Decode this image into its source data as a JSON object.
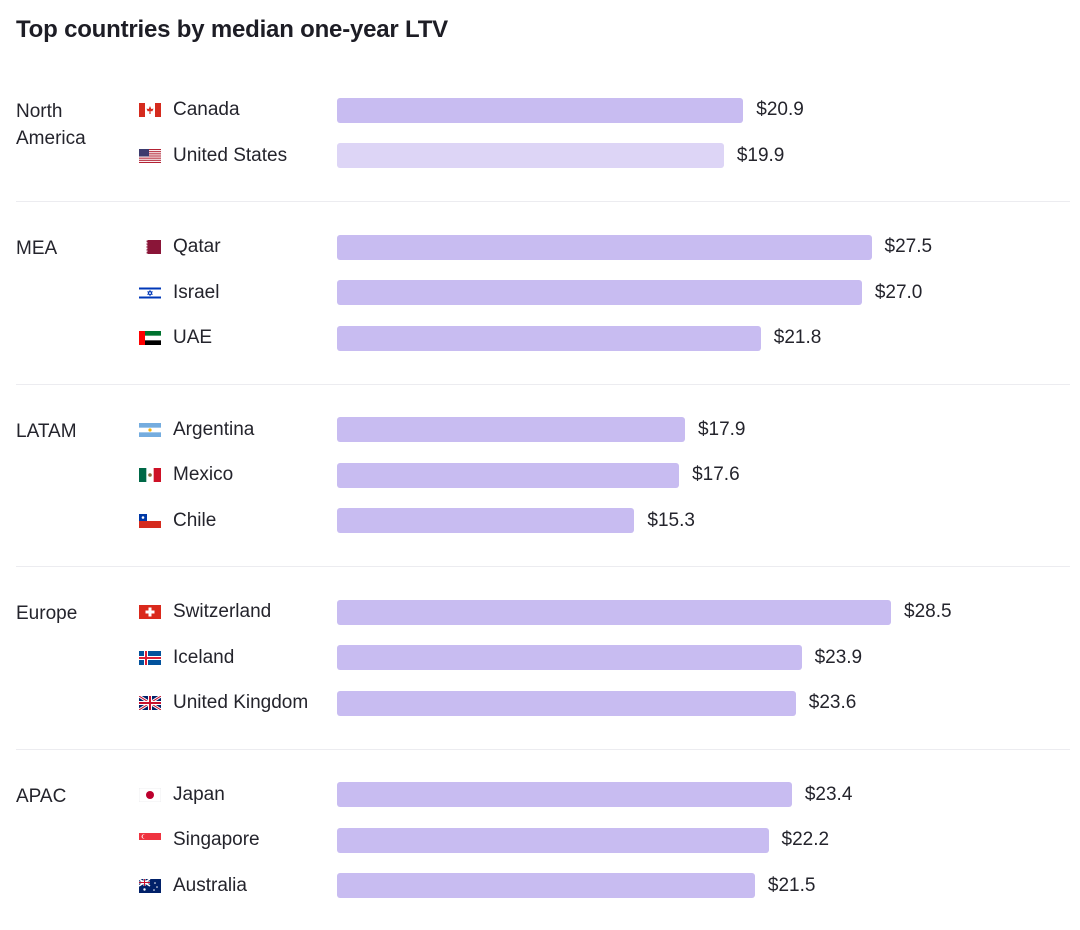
{
  "chart_data": {
    "type": "bar",
    "orientation": "horizontal",
    "title": "Top countries by median one-year LTV",
    "value_prefix": "$",
    "xlim": [
      0,
      30
    ],
    "groups": [
      {
        "region": "North America",
        "items": [
          {
            "country": "Canada",
            "value": 20.9,
            "label": "$20.9",
            "flag": "canada-flag",
            "color": "#c8bcf1"
          },
          {
            "country": "United States",
            "value": 19.9,
            "label": "$19.9",
            "flag": "united-states-flag",
            "color": "#ddd5f6"
          }
        ]
      },
      {
        "region": "MEA",
        "items": [
          {
            "country": "Qatar",
            "value": 27.5,
            "label": "$27.5",
            "flag": "qatar-flag",
            "color": "#c8bcf1"
          },
          {
            "country": "Israel",
            "value": 27.0,
            "label": "$27.0",
            "flag": "israel-flag",
            "color": "#c8bcf1"
          },
          {
            "country": "UAE",
            "value": 21.8,
            "label": "$21.8",
            "flag": "uae-flag",
            "color": "#c8bcf1"
          }
        ]
      },
      {
        "region": "LATAM",
        "items": [
          {
            "country": "Argentina",
            "value": 17.9,
            "label": "$17.9",
            "flag": "argentina-flag",
            "color": "#c8bcf1"
          },
          {
            "country": "Mexico",
            "value": 17.6,
            "label": "$17.6",
            "flag": "mexico-flag",
            "color": "#c8bcf1"
          },
          {
            "country": "Chile",
            "value": 15.3,
            "label": "$15.3",
            "flag": "chile-flag",
            "color": "#c8bcf1"
          }
        ]
      },
      {
        "region": "Europe",
        "items": [
          {
            "country": "Switzerland",
            "value": 28.5,
            "label": "$28.5",
            "flag": "switzerland-flag",
            "color": "#c8bcf1"
          },
          {
            "country": "Iceland",
            "value": 23.9,
            "label": "$23.9",
            "flag": "iceland-flag",
            "color": "#c8bcf1"
          },
          {
            "country": "United Kingdom",
            "value": 23.6,
            "label": "$23.6",
            "flag": "united-kingdom-flag",
            "color": "#c8bcf1"
          }
        ]
      },
      {
        "region": "APAC",
        "items": [
          {
            "country": "Japan",
            "value": 23.4,
            "label": "$23.4",
            "flag": "japan-flag",
            "color": "#c8bcf1"
          },
          {
            "country": "Singapore",
            "value": 22.2,
            "label": "$22.2",
            "flag": "singapore-flag",
            "color": "#c8bcf1"
          },
          {
            "country": "Australia",
            "value": 21.5,
            "label": "$21.5",
            "flag": "australia-flag",
            "color": "#c8bcf1"
          }
        ]
      }
    ]
  }
}
